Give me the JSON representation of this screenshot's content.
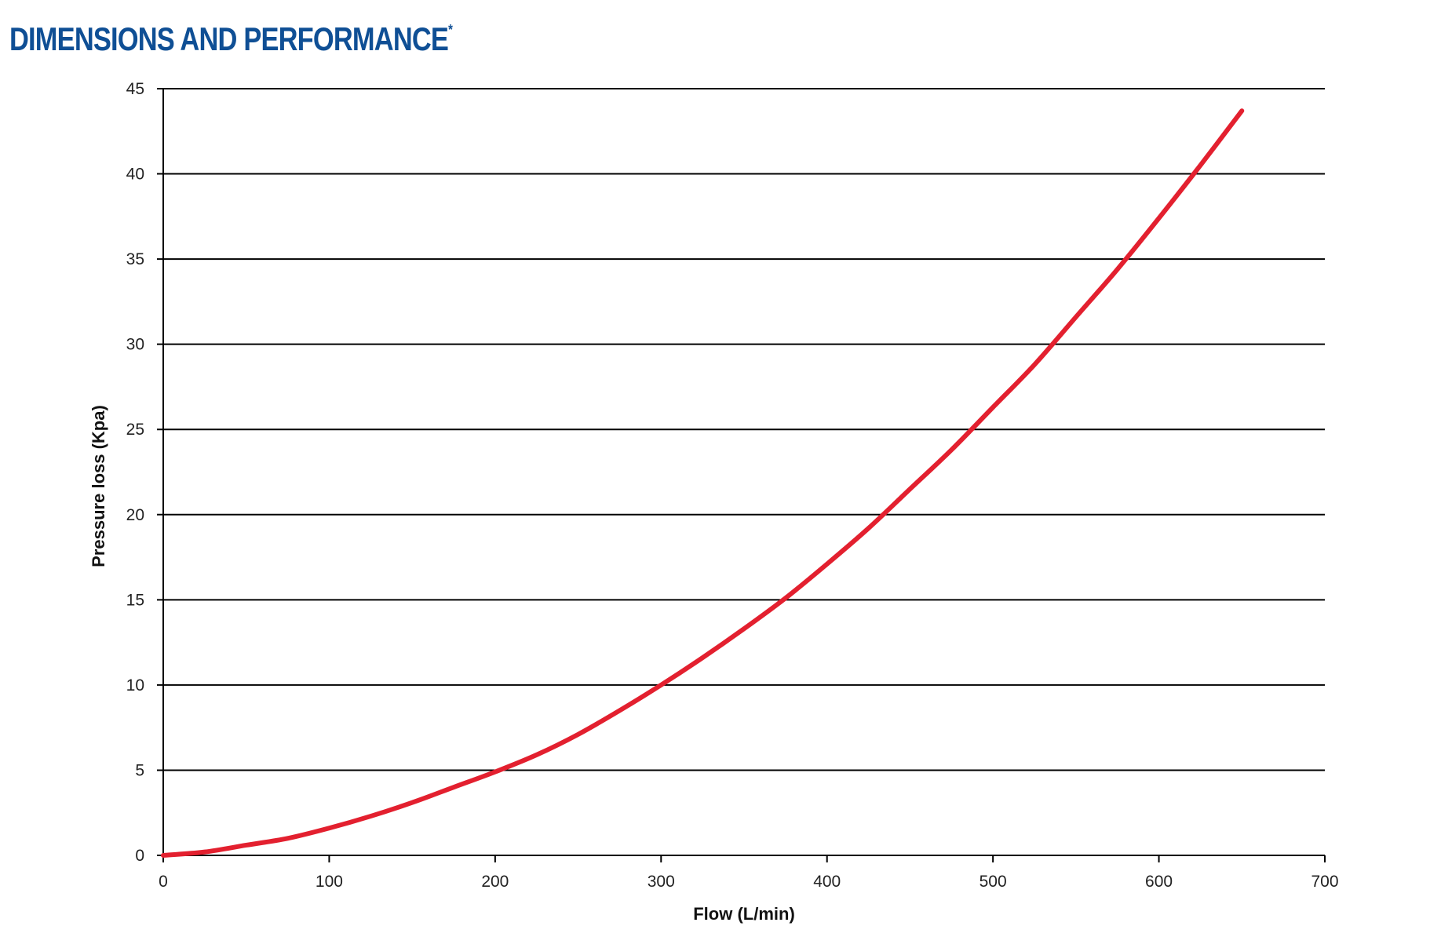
{
  "page": {
    "title": "DIMENSIONS AND PERFORMANCE",
    "title_mark": "*"
  },
  "chart_data": {
    "type": "line",
    "title": "",
    "xlabel": "Flow (L/min)",
    "ylabel": "Pressure loss (Kpa)",
    "xlim": [
      0,
      700
    ],
    "ylim": [
      0,
      45
    ],
    "xticks": [
      0,
      100,
      200,
      300,
      400,
      500,
      600,
      700
    ],
    "yticks": [
      0,
      5,
      10,
      15,
      20,
      25,
      30,
      35,
      40,
      45
    ],
    "grid": "horizontal",
    "legend": "none",
    "series": [
      {
        "color": "#e3202f",
        "x": [
          0,
          25,
          50,
          75,
          100,
          125,
          150,
          175,
          200,
          225,
          250,
          275,
          300,
          325,
          350,
          375,
          400,
          425,
          450,
          475,
          500,
          525,
          550,
          575,
          600,
          625,
          650
        ],
        "y": [
          0,
          0.2,
          0.6,
          1.0,
          1.6,
          2.3,
          3.1,
          4.0,
          4.9,
          5.9,
          7.1,
          8.5,
          10.0,
          11.6,
          13.3,
          15.1,
          17.1,
          19.2,
          21.5,
          23.8,
          26.3,
          28.8,
          31.6,
          34.4,
          37.4,
          40.5,
          43.7
        ]
      }
    ]
  }
}
